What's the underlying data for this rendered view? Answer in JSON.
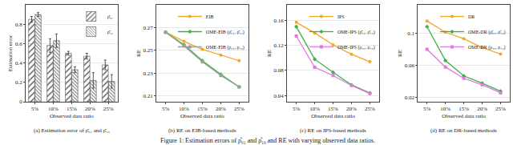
{
  "chart_data": [
    {
      "type": "bar",
      "title": "(a) Estimation error of ρ̂₀₁ and ρ̂₁₀",
      "x_label": "Observed data ratio",
      "y_label": "Estimation error",
      "categories": [
        "5%",
        "10%",
        "15%",
        "20%",
        "25%"
      ],
      "series": [
        {
          "name": "ρ̂₀₁",
          "color": "#e6e6e6",
          "values": [
            0.85,
            0.58,
            0.5,
            0.47,
            0.38
          ],
          "errors": [
            0.03,
            0.07,
            0.02,
            0.03,
            0.05
          ]
        },
        {
          "name": "ρ̂₁₀",
          "color": "#b8b8b8",
          "values": [
            0.9,
            0.63,
            0.33,
            0.22,
            0.21
          ],
          "errors": [
            0.02,
            0.07,
            0.03,
            0.08,
            0.07
          ]
        }
      ],
      "ylim": [
        0,
        1.0
      ],
      "yticks": [
        0,
        0.2,
        0.4,
        0.6,
        0.8
      ],
      "legend": "top right"
    },
    {
      "type": "line",
      "title": "(b) RE on EIB-based methods",
      "x_label": "Observed data ratio",
      "y_label": "RE",
      "categories": [
        "5%",
        "10%",
        "15%",
        "20%",
        "25%"
      ],
      "series": [
        {
          "name": "EIB",
          "color": "#f5a623",
          "marker": "circle",
          "values": [
            0.266,
            0.258,
            0.251,
            0.246,
            0.241
          ]
        },
        {
          "name": "OME-EIB (ρ̂₀₁, ρ̂₁₀)",
          "color": "#3cb043",
          "marker": "diamond",
          "values": [
            0.266,
            0.255,
            0.241,
            0.229,
            0.218
          ]
        },
        {
          "name": "OME-EIB (ρ₀₁, ρ₁₀)",
          "color": "#a0a0a0",
          "marker": "square",
          "values": [
            0.266,
            0.254,
            0.24,
            0.228,
            0.218
          ]
        }
      ],
      "ylim": [
        0.205,
        0.29
      ],
      "yticks": [
        0.21,
        0.23,
        0.25,
        0.27
      ],
      "legend": "top right"
    },
    {
      "type": "line",
      "title": "(c) RE on IPS-based methods",
      "x_label": "Observed data ratio",
      "y_label": "RE",
      "categories": [
        "5%",
        "10%",
        "15%",
        "20%",
        "25%"
      ],
      "series": [
        {
          "name": "IPS",
          "color": "#f5a623",
          "marker": "circle",
          "values": [
            0.157,
            0.14,
            0.121,
            0.106,
            0.094
          ]
        },
        {
          "name": "OME-IPS (ρ̂₀₁, ρ̂₁₀)",
          "color": "#3cb043",
          "marker": "diamond",
          "values": [
            0.15,
            0.098,
            0.077,
            0.057,
            0.044
          ]
        },
        {
          "name": "OME-IPS (ρ₀₁, ρ₁₀)",
          "color": "#e377e3",
          "marker": "square",
          "values": [
            0.135,
            0.085,
            0.072,
            0.056,
            0.043
          ]
        }
      ],
      "ylim": [
        0.03,
        0.185
      ],
      "yticks": [
        0.04,
        0.08,
        0.12,
        0.16
      ],
      "legend": "top right"
    },
    {
      "type": "line",
      "title": "(d) RE on DR-based methods",
      "x_label": "Observed data ratio",
      "y_label": "RE",
      "categories": [
        "5%",
        "10%",
        "15%",
        "20%",
        "25%"
      ],
      "series": [
        {
          "name": "DR",
          "color": "#f5a623",
          "marker": "circle",
          "values": [
            0.115,
            0.101,
            0.093,
            0.082,
            0.074
          ]
        },
        {
          "name": "OME-DR (ρ̂₀₁, ρ̂₁₀)",
          "color": "#3cb043",
          "marker": "diamond",
          "values": [
            0.108,
            0.066,
            0.047,
            0.038,
            0.028
          ]
        },
        {
          "name": "OME-DR (ρ₀₁, ρ₁₀)",
          "color": "#e377e3",
          "marker": "square",
          "values": [
            0.08,
            0.058,
            0.044,
            0.036,
            0.026
          ]
        }
      ],
      "ylim": [
        0.015,
        0.135
      ],
      "yticks": [
        0.02,
        0.06,
        0.1
      ],
      "legend": "top right"
    }
  ],
  "figure_caption": "Figure 1: Estimation errors of ρ̂₀₁ and ρ̂₁₀ and RE with varying observed data ratios."
}
